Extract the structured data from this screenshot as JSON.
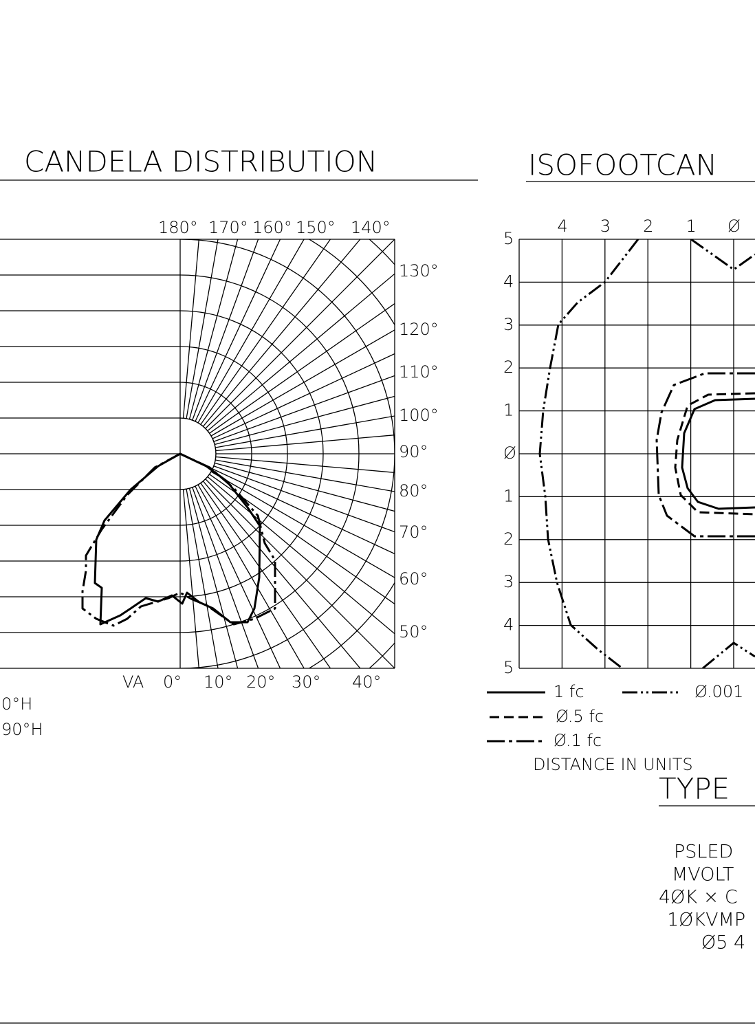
{
  "candela": {
    "title": "CANDELA DISTRIBUTION",
    "top_labels": [
      "180°",
      "170°",
      "160°",
      "150°",
      "140°"
    ],
    "right_labels": [
      "130°",
      "120°",
      "110°",
      "100°",
      "90°",
      "80°",
      "70°",
      "60°",
      "50°"
    ],
    "bottom_labels": [
      "VA",
      "0°",
      "10°",
      "20°",
      "30°",
      "40°"
    ],
    "legend": [
      "0°H",
      "90°H"
    ]
  },
  "iso": {
    "title": "ISOFOOTCAN",
    "x_labels": [
      "4",
      "3",
      "2",
      "1",
      "Ø"
    ],
    "y_labels": [
      "5",
      "4",
      "3",
      "2",
      "1",
      "Ø",
      "1",
      "2",
      "3",
      "4",
      "5"
    ],
    "legend": [
      "1 fc",
      "Ø.001",
      "Ø.5 fc",
      "Ø.1 fc"
    ],
    "note": "DISTANCE IN UNITS"
  },
  "type_block": {
    "title": "TYPE",
    "lines": [
      "PSLED",
      "MVOLT",
      "4ØK × C",
      "1ØKVMP",
      "Ø5 4"
    ]
  }
}
